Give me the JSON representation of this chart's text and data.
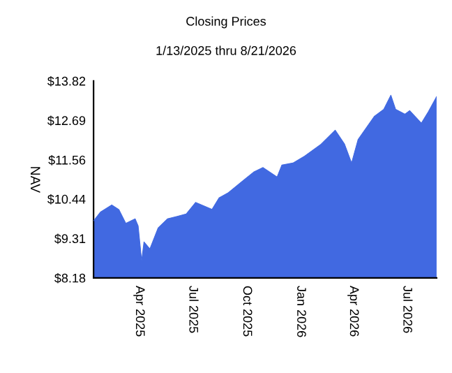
{
  "chart_data": {
    "type": "area",
    "title": "Closing Prices",
    "subtitle": "1/13/2025 thru 8/21/2026",
    "ylabel": "NAV",
    "x": [
      "2025-01-13",
      "2025-01-25",
      "2025-02-13",
      "2025-02-25",
      "2025-03-09",
      "2025-03-25",
      "2025-03-30",
      "2025-04-05",
      "2025-04-09",
      "2025-04-19",
      "2025-05-03",
      "2025-05-19",
      "2025-06-20",
      "2025-07-06",
      "2025-08-03",
      "2025-08-15",
      "2025-08-30",
      "2025-09-23",
      "2025-10-13",
      "2025-10-29",
      "2025-11-22",
      "2025-11-30",
      "2025-12-19",
      "2026-01-08",
      "2026-02-05",
      "2026-03-01",
      "2026-03-17",
      "2026-03-29",
      "2026-04-09",
      "2026-05-07",
      "2026-05-23",
      "2026-06-04",
      "2026-06-12",
      "2026-06-28",
      "2026-07-06",
      "2026-07-26",
      "2026-08-07",
      "2026-08-21"
    ],
    "series": [
      {
        "color": "#4169e1",
        "values": [
          9.81,
          10.07,
          10.27,
          10.14,
          9.74,
          9.87,
          9.67,
          8.67,
          9.21,
          9.01,
          9.61,
          9.87,
          10.01,
          10.34,
          10.14,
          10.47,
          10.61,
          10.94,
          11.21,
          11.34,
          11.07,
          11.41,
          11.47,
          11.67,
          12.01,
          12.41,
          12.01,
          11.47,
          12.14,
          12.81,
          13.01,
          13.41,
          13.01,
          12.87,
          12.97,
          12.61,
          12.94,
          13.37
        ]
      }
    ],
    "xlim": [
      "2025-01-13",
      "2026-08-21"
    ],
    "xticks": [
      {
        "value": "2025-04-01",
        "label": "Apr 2025"
      },
      {
        "value": "2025-07-01",
        "label": "Jul 2025"
      },
      {
        "value": "2025-10-01",
        "label": "Oct 2025"
      },
      {
        "value": "2026-01-01",
        "label": "Jan 2026"
      },
      {
        "value": "2026-04-01",
        "label": "Apr 2026"
      },
      {
        "value": "2026-07-01",
        "label": "Jul 2026"
      }
    ],
    "ylim": [
      8.18,
      13.82
    ],
    "yticks": [
      {
        "value": 8.18,
        "label": "$8.18"
      },
      {
        "value": 9.31,
        "label": "$9.31"
      },
      {
        "value": 10.44,
        "label": "$10.44"
      },
      {
        "value": 11.56,
        "label": "$11.56"
      },
      {
        "value": 12.69,
        "label": "$12.69"
      },
      {
        "value": 13.82,
        "label": "$13.82"
      }
    ],
    "grid": false,
    "legend": false
  }
}
